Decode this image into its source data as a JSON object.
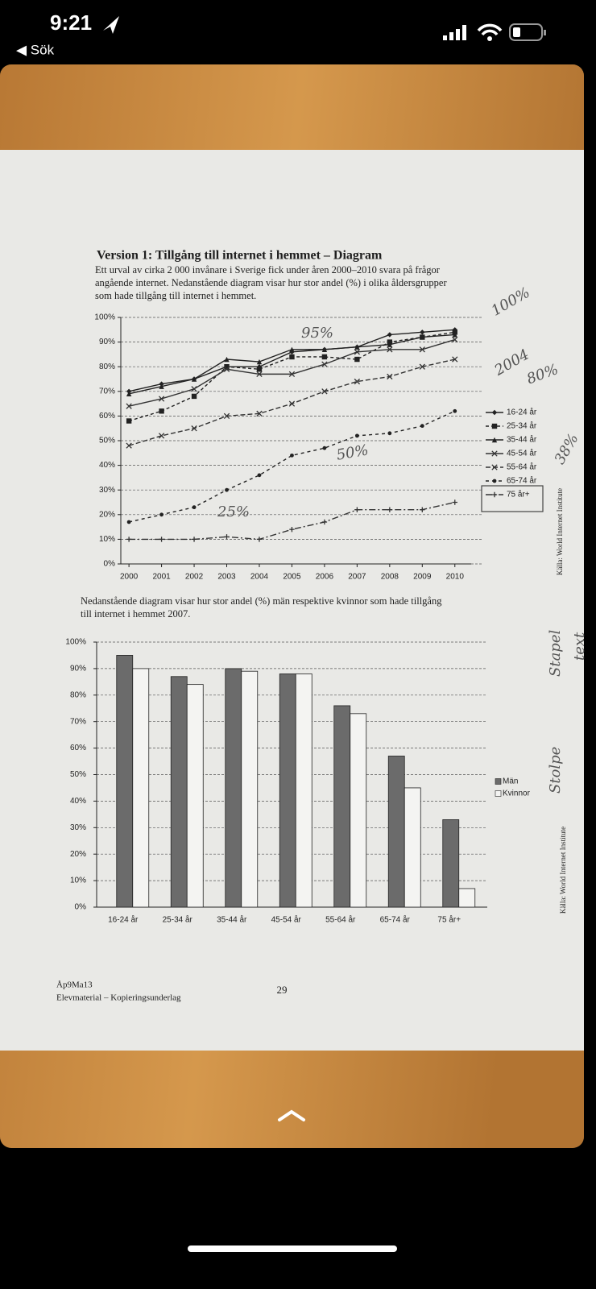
{
  "status_bar": {
    "time": "9:21",
    "back": "◀ Sök"
  },
  "document": {
    "title": "Version 1: Tillgång till internet i hemmet – Diagram",
    "intro": [
      "Ett urval av cirka 2 000 invånare i Sverige fick under åren 2000–2010 svara på frågor",
      "angående internet. Nedanstående diagram visar hur stor andel (%) i olika åldersgrupper",
      "som hade tillgång till internet i hemmet."
    ],
    "chart_intro": [
      "Nedanstående diagram visar hur stor andel (%) män respektive kvinnor som hade tillgång",
      "till internet i hemmet 2007."
    ],
    "footer_code": "Åp9Ma13",
    "footer_text": "Elevmaterial – Kopieringsunderlag",
    "page_number": "29",
    "annotations": [
      "100%",
      "2004",
      "80%",
      "38%",
      "25%",
      "50%",
      "95%",
      "Stapel",
      "text",
      "Stolpe"
    ]
  },
  "chart_data": [
    {
      "type": "line",
      "source": "Källa: World Internet Institute",
      "x": [
        2000,
        2001,
        2002,
        2003,
        2004,
        2005,
        2006,
        2007,
        2008,
        2009,
        2010
      ],
      "xticks": [
        2000,
        2001,
        2002,
        2003,
        2004,
        2005,
        2006,
        2007,
        2008,
        2009,
        2010
      ],
      "xlim": [
        1999.75,
        2010.5
      ],
      "ylim": [
        0,
        100
      ],
      "yticks": [
        {
          "value": 0,
          "label": "0%"
        },
        {
          "value": 10,
          "label": "10%"
        },
        {
          "value": 20,
          "label": "20%"
        },
        {
          "value": 30,
          "label": "30%"
        },
        {
          "value": 40,
          "label": "40%"
        },
        {
          "value": 50,
          "label": "50%"
        },
        {
          "value": 60,
          "label": "60%"
        },
        {
          "value": 70,
          "label": "70%"
        },
        {
          "value": 80,
          "label": "80%"
        },
        {
          "value": 90,
          "label": "90%"
        },
        {
          "value": 100,
          "label": "100%"
        }
      ],
      "grid": true,
      "series": [
        {
          "name": "16-24 år",
          "color": "#222222",
          "dash": "none",
          "marker": "diamond",
          "values": [
            70,
            73,
            75,
            80,
            80,
            86,
            87,
            88,
            93,
            94,
            95
          ]
        },
        {
          "name": "25-34 år",
          "color": "#222222",
          "dash": "4 3",
          "marker": "square",
          "values": [
            58,
            62,
            68,
            80,
            79,
            84,
            84,
            83,
            90,
            92,
            94
          ]
        },
        {
          "name": "35-44 år",
          "color": "#222222",
          "dash": "none",
          "marker": "triangle",
          "values": [
            69,
            72,
            75,
            83,
            82,
            87,
            87,
            88,
            89,
            92,
            93
          ]
        },
        {
          "name": "45-54 år",
          "color": "#333333",
          "dash": "none",
          "marker": "x",
          "values": [
            64,
            67,
            71,
            79,
            77,
            77,
            81,
            86,
            87,
            87,
            91
          ]
        },
        {
          "name": "55-64 år",
          "color": "#333333",
          "dash": "6 3",
          "marker": "x",
          "values": [
            48,
            52,
            55,
            60,
            61,
            65,
            70,
            74,
            76,
            80,
            83
          ]
        },
        {
          "name": "65-74 år",
          "color": "#222222",
          "dash": "4 4",
          "marker": "circle",
          "values": [
            17,
            20,
            23,
            30,
            36,
            44,
            47,
            52,
            53,
            56,
            62
          ]
        },
        {
          "name": "75 år+",
          "color": "#333333",
          "dash": "8 3 2 3",
          "marker": "plus",
          "values": [
            10,
            10,
            10,
            11,
            10,
            14,
            17,
            22,
            22,
            22,
            25
          ]
        }
      ]
    },
    {
      "type": "bar",
      "source": "Källa: World Internet Institute",
      "categories": [
        "16-24 år",
        "25-34 år",
        "35-44 år",
        "45-54 år",
        "55-64 år",
        "65-74 år",
        "75 år+"
      ],
      "ylim": [
        0,
        100
      ],
      "yticks": [
        {
          "value": 0,
          "label": "0%"
        },
        {
          "value": 10,
          "label": "10%"
        },
        {
          "value": 20,
          "label": "20%"
        },
        {
          "value": 30,
          "label": "30%"
        },
        {
          "value": 40,
          "label": "40%"
        },
        {
          "value": 50,
          "label": "50%"
        },
        {
          "value": 60,
          "label": "60%"
        },
        {
          "value": 70,
          "label": "70%"
        },
        {
          "value": 80,
          "label": "80%"
        },
        {
          "value": 90,
          "label": "90%"
        },
        {
          "value": 100,
          "label": "100%"
        }
      ],
      "grid": true,
      "series": [
        {
          "name": "Män",
          "color": "#6b6b6b",
          "values": [
            95,
            87,
            90,
            88,
            76,
            57,
            33
          ]
        },
        {
          "name": "Kvinnor",
          "color": "#f4f4f2",
          "values": [
            90,
            84,
            89,
            88,
            73,
            45,
            7
          ]
        }
      ]
    }
  ]
}
